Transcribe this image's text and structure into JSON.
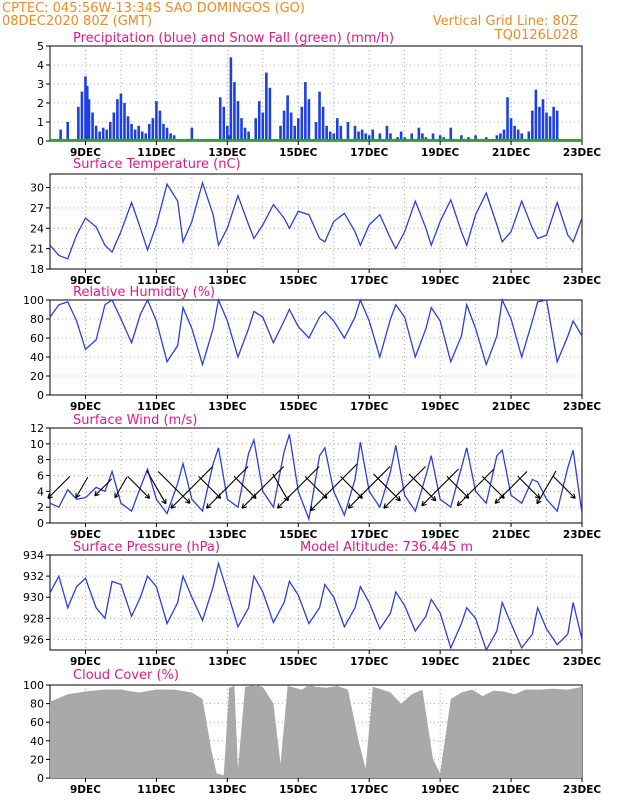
{
  "header": {
    "line1_left": "CPTEC:   045:56W-13:34S  SAO DOMINGOS (GO)",
    "line2_left": "08DEC2020 80Z (GMT)",
    "line1_right": "Vertical Grid Line: 80Z",
    "line2_right": "TQ0126L028"
  },
  "colors": {
    "header": "#f08a24",
    "title": "#e0188a",
    "precip": "#1f3fe6",
    "snow": "#22aa22",
    "line": "#2b3fe0",
    "cloud": "#a9a9a9",
    "grid": "#9a9a9a"
  },
  "x_ticks": [
    "9DEC",
    "11DEC",
    "13DEC",
    "15DEC",
    "17DEC",
    "19DEC",
    "21DEC",
    "23DEC"
  ],
  "chart_data": [
    {
      "type": "bar",
      "title": "Precipitation (blue) and Snow Fall (green) (mm/h)",
      "ylim": [
        0,
        5
      ],
      "yticks": [
        0,
        1,
        2,
        3,
        4,
        5
      ],
      "x_range_days": [
        8.0,
        23.0
      ],
      "x": [
        8.3,
        8.5,
        8.8,
        8.9,
        9.0,
        9.05,
        9.1,
        9.2,
        9.3,
        9.4,
        9.5,
        9.6,
        9.7,
        9.8,
        9.9,
        10.0,
        10.1,
        10.2,
        10.3,
        10.4,
        10.5,
        10.6,
        10.7,
        10.8,
        10.9,
        11.0,
        11.1,
        11.2,
        11.3,
        11.4,
        11.5,
        12.0,
        12.8,
        12.9,
        13.0,
        13.05,
        13.1,
        13.2,
        13.3,
        13.4,
        13.5,
        13.6,
        13.8,
        13.9,
        14.0,
        14.1,
        14.2,
        14.5,
        14.6,
        14.7,
        14.8,
        14.9,
        15.0,
        15.1,
        15.2,
        15.3,
        15.5,
        15.6,
        15.7,
        15.8,
        15.9,
        16.0,
        16.1,
        16.2,
        16.4,
        16.6,
        16.7,
        16.8,
        16.9,
        17.0,
        17.1,
        17.3,
        17.5,
        17.6,
        17.8,
        17.9,
        18.0,
        18.2,
        18.4,
        18.5,
        18.6,
        18.8,
        19.0,
        19.1,
        19.3,
        19.6,
        19.8,
        20.0,
        20.3,
        20.6,
        20.7,
        20.8,
        20.9,
        21.0,
        21.1,
        21.2,
        21.3,
        21.5,
        21.6,
        21.7,
        21.8,
        21.9,
        22.0,
        22.1,
        22.2,
        22.3
      ],
      "values": [
        0.6,
        1.0,
        1.8,
        2.6,
        3.4,
        2.9,
        2.2,
        1.5,
        0.8,
        0.5,
        0.7,
        0.6,
        1.0,
        1.5,
        2.2,
        2.5,
        2.0,
        1.3,
        0.9,
        0.6,
        0.8,
        0.5,
        0.4,
        0.9,
        1.2,
        2.1,
        1.6,
        0.9,
        0.7,
        0.4,
        0.3,
        0.7,
        2.3,
        1.8,
        0.8,
        0.3,
        4.4,
        3.1,
        2.1,
        1.2,
        0.7,
        0.5,
        1.2,
        2.1,
        1.5,
        3.6,
        2.8,
        0.8,
        1.6,
        2.4,
        1.5,
        0.8,
        1.2,
        1.8,
        3.1,
        2.2,
        1.0,
        2.6,
        1.8,
        0.8,
        0.5,
        0.4,
        1.2,
        0.8,
        1.0,
        0.8,
        0.5,
        0.6,
        0.4,
        0.3,
        0.6,
        0.4,
        0.8,
        0.4,
        0.2,
        0.5,
        0.2,
        0.4,
        0.7,
        0.4,
        0.2,
        0.4,
        0.3,
        0.2,
        0.7,
        0.3,
        0.2,
        0.3,
        0.2,
        0.3,
        0.4,
        0.6,
        2.3,
        1.2,
        0.8,
        0.6,
        0.4,
        0.5,
        1.6,
        2.7,
        1.8,
        2.2,
        1.5,
        1.3,
        1.8,
        1.6
      ],
      "snow_values": 0
    },
    {
      "type": "line",
      "title": "Surface Temperature (nC)",
      "ylim": [
        18,
        32
      ],
      "yticks": [
        18,
        21,
        24,
        27,
        30
      ],
      "x": [
        8.0,
        8.25,
        8.5,
        8.75,
        9.0,
        9.3,
        9.55,
        9.75,
        10.0,
        10.3,
        10.55,
        10.75,
        11.0,
        11.3,
        11.6,
        11.75,
        12.0,
        12.3,
        12.6,
        12.75,
        13.0,
        13.3,
        13.6,
        13.75,
        14.0,
        14.3,
        14.6,
        14.75,
        15.0,
        15.3,
        15.6,
        15.75,
        16.0,
        16.3,
        16.6,
        16.75,
        17.0,
        17.3,
        17.6,
        17.75,
        18.0,
        18.3,
        18.6,
        18.75,
        19.0,
        19.3,
        19.6,
        19.75,
        20.0,
        20.3,
        20.6,
        20.75,
        21.0,
        21.3,
        21.6,
        21.75,
        22.0,
        22.3,
        22.6,
        22.75,
        23.0
      ],
      "y": [
        21.5,
        20.0,
        19.5,
        23.0,
        25.5,
        24.2,
        21.5,
        20.5,
        23.5,
        27.8,
        24.0,
        20.8,
        24.5,
        30.5,
        28.0,
        22.0,
        25.0,
        30.7,
        26.0,
        21.5,
        24.0,
        28.8,
        24.5,
        22.5,
        24.5,
        27.5,
        25.5,
        24.0,
        26.5,
        26.0,
        22.5,
        22.0,
        25.0,
        26.2,
        23.5,
        21.5,
        24.5,
        26.0,
        22.5,
        21.0,
        23.5,
        28.0,
        24.0,
        21.5,
        25.0,
        28.2,
        23.5,
        21.5,
        26.0,
        29.2,
        24.5,
        22.0,
        23.5,
        28.0,
        24.0,
        22.5,
        23.0,
        27.8,
        23.0,
        22.0,
        25.5
      ]
    },
    {
      "type": "line",
      "title": "Relative Humidity (%)",
      "ylim": [
        0,
        100
      ],
      "yticks": [
        0,
        20,
        40,
        60,
        80,
        100
      ],
      "x": [
        8.0,
        8.25,
        8.5,
        8.75,
        9.0,
        9.3,
        9.55,
        9.75,
        10.0,
        10.3,
        10.55,
        10.75,
        11.0,
        11.3,
        11.6,
        11.75,
        12.0,
        12.3,
        12.6,
        12.75,
        13.0,
        13.3,
        13.6,
        13.75,
        14.0,
        14.3,
        14.6,
        14.75,
        15.0,
        15.3,
        15.6,
        15.75,
        16.0,
        16.3,
        16.6,
        16.75,
        17.0,
        17.3,
        17.6,
        17.75,
        18.0,
        18.3,
        18.6,
        18.75,
        19.0,
        19.3,
        19.6,
        19.75,
        20.0,
        20.3,
        20.6,
        20.75,
        21.0,
        21.3,
        21.6,
        21.75,
        22.0,
        22.3,
        22.6,
        22.75,
        23.0
      ],
      "y": [
        82,
        95,
        98,
        78,
        48,
        58,
        95,
        100,
        80,
        55,
        85,
        100,
        78,
        35,
        52,
        92,
        70,
        32,
        70,
        100,
        78,
        40,
        70,
        88,
        82,
        55,
        78,
        90,
        72,
        60,
        82,
        88,
        78,
        60,
        82,
        100,
        78,
        40,
        80,
        95,
        82,
        40,
        70,
        92,
        78,
        35,
        62,
        95,
        70,
        32,
        62,
        100,
        80,
        40,
        78,
        98,
        100,
        35,
        62,
        78,
        62
      ]
    },
    {
      "type": "line",
      "title": "Surface Wind (m/s)",
      "ylim": [
        0,
        12
      ],
      "yticks": [
        0,
        2,
        4,
        6,
        8,
        10,
        12
      ],
      "x": [
        8.0,
        8.25,
        8.5,
        8.75,
        9.0,
        9.3,
        9.55,
        9.75,
        10.0,
        10.3,
        10.55,
        10.75,
        11.0,
        11.3,
        11.6,
        11.75,
        12.0,
        12.3,
        12.6,
        12.75,
        13.0,
        13.3,
        13.6,
        13.75,
        14.0,
        14.3,
        14.6,
        14.75,
        15.0,
        15.3,
        15.6,
        15.75,
        16.0,
        16.3,
        16.6,
        16.75,
        17.0,
        17.3,
        17.6,
        17.75,
        18.0,
        18.3,
        18.6,
        18.75,
        19.0,
        19.3,
        19.6,
        19.75,
        20.0,
        20.3,
        20.6,
        20.75,
        21.0,
        21.3,
        21.6,
        21.75,
        22.0,
        22.3,
        22.6,
        22.75,
        23.0
      ],
      "y": [
        2.5,
        2.0,
        4.2,
        3.0,
        3.2,
        4.5,
        4.0,
        6.5,
        2.5,
        1.5,
        4.5,
        6.8,
        3.0,
        1.2,
        5.0,
        7.5,
        3.0,
        1.5,
        7.5,
        9.5,
        3.0,
        2.0,
        8.8,
        10.5,
        4.0,
        2.0,
        9.0,
        11.2,
        4.0,
        0.5,
        8.5,
        9.5,
        4.0,
        1.0,
        5.5,
        10.2,
        4.0,
        2.0,
        6.5,
        9.8,
        3.5,
        1.5,
        6.0,
        8.5,
        3.0,
        2.0,
        7.0,
        9.5,
        4.0,
        2.5,
        8.5,
        9.2,
        3.5,
        2.5,
        5.5,
        5.2,
        3.0,
        1.5,
        7.0,
        9.2,
        1.2
      ],
      "arrow_x": [
        8.25,
        8.9,
        9.5,
        10.0,
        10.5,
        11.0,
        11.5,
        12.0,
        12.5,
        13.0,
        13.5,
        14.0,
        14.5,
        15.0,
        15.5,
        16.0,
        16.5,
        17.0,
        17.5,
        18.0,
        18.5,
        19.0,
        19.5,
        20.0,
        20.5,
        21.0,
        21.5,
        22.0,
        22.5
      ],
      "arrow_dir_deg": [
        225,
        240,
        225,
        240,
        315,
        300,
        315,
        225,
        315,
        225,
        315,
        225,
        300,
        225,
        315,
        225,
        315,
        225,
        315,
        225,
        315,
        225,
        315,
        225,
        315,
        225,
        315,
        240,
        315
      ],
      "arrow_len": [
        3,
        2,
        2,
        2,
        3,
        4,
        5,
        7,
        3,
        7,
        3,
        7,
        3,
        7,
        3,
        8,
        3,
        7,
        4,
        7,
        4,
        6,
        3,
        6,
        3,
        5,
        3,
        4,
        3
      ]
    },
    {
      "type": "line",
      "title": "Surface Pressure (hPa)",
      "subtitle": "Model Altitude: 736.445 m",
      "ylim": [
        925,
        934
      ],
      "yticks": [
        926,
        928,
        930,
        932,
        934
      ],
      "x": [
        8.0,
        8.25,
        8.5,
        8.75,
        9.0,
        9.3,
        9.55,
        9.75,
        10.0,
        10.3,
        10.55,
        10.75,
        11.0,
        11.3,
        11.6,
        11.75,
        12.0,
        12.3,
        12.6,
        12.75,
        13.0,
        13.3,
        13.6,
        13.75,
        14.0,
        14.3,
        14.6,
        14.75,
        15.0,
        15.3,
        15.6,
        15.75,
        16.0,
        16.3,
        16.6,
        16.75,
        17.0,
        17.3,
        17.6,
        17.75,
        18.0,
        18.3,
        18.6,
        18.75,
        19.0,
        19.3,
        19.6,
        19.75,
        20.0,
        20.3,
        20.6,
        20.75,
        21.0,
        21.3,
        21.6,
        21.75,
        22.0,
        22.3,
        22.6,
        22.75,
        23.0
      ],
      "y": [
        930.4,
        932.0,
        929.0,
        931.0,
        931.8,
        929.0,
        928.0,
        931.5,
        931.2,
        928.2,
        930.0,
        932.0,
        931.0,
        927.5,
        929.5,
        932.0,
        930.0,
        927.8,
        931.0,
        933.2,
        930.5,
        927.2,
        929.0,
        932.0,
        930.5,
        927.6,
        929.5,
        931.5,
        930.2,
        927.5,
        929.0,
        931.2,
        930.0,
        927.2,
        929.0,
        931.0,
        929.5,
        927.0,
        928.5,
        930.5,
        929.2,
        926.8,
        928.2,
        929.8,
        928.5,
        925.2,
        927.5,
        929.0,
        928.0,
        925.0,
        926.8,
        929.5,
        927.5,
        925.2,
        926.5,
        929.0,
        927.0,
        925.5,
        926.5,
        929.5,
        926.0
      ]
    },
    {
      "type": "area",
      "title": "Cloud Cover (%)",
      "ylim": [
        0,
        100
      ],
      "yticks": [
        0,
        20,
        40,
        60,
        80,
        100
      ],
      "x": [
        8.0,
        8.5,
        9.0,
        9.5,
        10.0,
        10.5,
        11.0,
        11.5,
        12.0,
        12.3,
        12.55,
        12.7,
        12.9,
        13.05,
        13.2,
        13.3,
        13.5,
        13.8,
        14.0,
        14.3,
        14.5,
        14.7,
        14.9,
        15.1,
        15.3,
        15.5,
        15.8,
        16.1,
        16.4,
        16.7,
        16.9,
        17.1,
        17.3,
        17.6,
        17.9,
        18.2,
        18.5,
        18.8,
        19.0,
        19.3,
        19.6,
        19.9,
        20.2,
        20.5,
        20.8,
        21.1,
        21.4,
        21.8,
        22.2,
        22.6,
        23.0
      ],
      "y": [
        82,
        90,
        93,
        95,
        95,
        92,
        95,
        95,
        92,
        85,
        30,
        5,
        3,
        97,
        99,
        10,
        98,
        100,
        98,
        80,
        15,
        99,
        97,
        95,
        100,
        98,
        97,
        99,
        95,
        40,
        10,
        98,
        96,
        92,
        80,
        90,
        95,
        20,
        5,
        85,
        92,
        95,
        88,
        94,
        93,
        90,
        95,
        95,
        96,
        95,
        98
      ]
    }
  ]
}
